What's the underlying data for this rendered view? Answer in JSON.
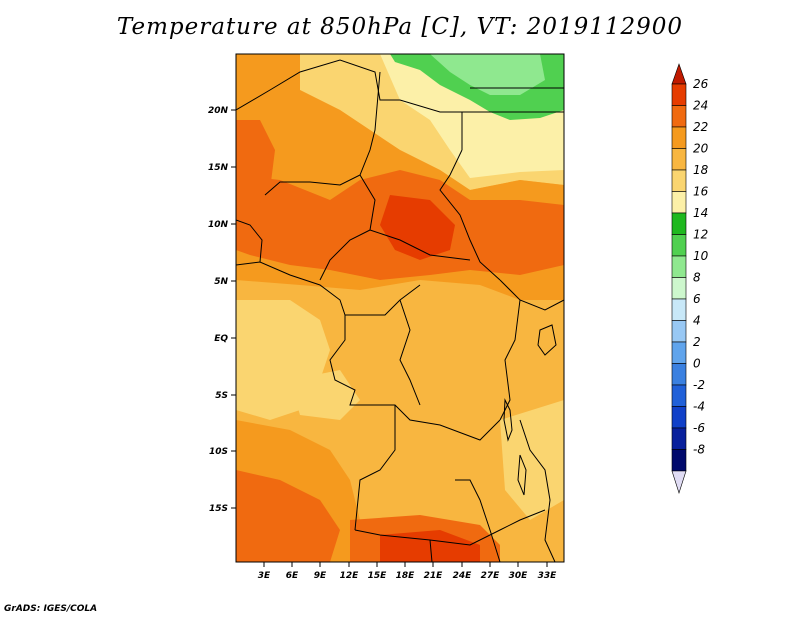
{
  "title": "Temperature at 850hPa [C], VT: 2019112900",
  "footer": "GrADS: IGES/COLA",
  "lat_labels": [
    "20N",
    "15N",
    "10N",
    "5N",
    "EQ",
    "5S",
    "10S",
    "15S"
  ],
  "lon_labels": [
    "3E",
    "6E",
    "9E",
    "12E",
    "15E",
    "18E",
    "21E",
    "24E",
    "27E",
    "30E",
    "33E"
  ],
  "colorbar": {
    "labels": [
      "26",
      "24",
      "22",
      "20",
      "18",
      "16",
      "14",
      "12",
      "10",
      "8",
      "6",
      "4",
      "2",
      "0",
      "-2",
      "-4",
      "-6",
      "-8"
    ],
    "colors": [
      "#c01a00",
      "#e63c00",
      "#f06a10",
      "#f59a1e",
      "#f8b640",
      "#fad570",
      "#fcf0a8",
      "#1fb81f",
      "#50d050",
      "#8fe88f",
      "#cdf7cd",
      "#c8e8f8",
      "#98c8f4",
      "#60a4ec",
      "#3a80e0",
      "#2060d8",
      "#1040c8",
      "#08209c",
      "#000a6c",
      "#e0dcf4"
    ]
  },
  "map_colors": {
    "c14": "#fcf0a8",
    "c16": "#fad570",
    "c18": "#f8b640",
    "c20": "#f59a1e",
    "c22": "#f06a10",
    "c24": "#e63c00",
    "c12": "#50d050",
    "c10": "#8fe88f"
  }
}
